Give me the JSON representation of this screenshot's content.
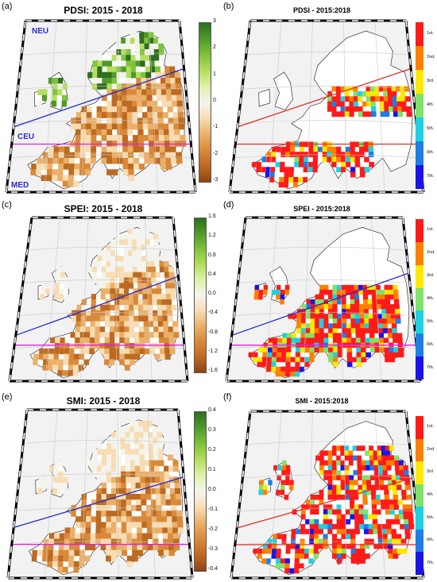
{
  "figure": {
    "panels": [
      {
        "id": "a",
        "letter": "(a)",
        "title": "PDSI: 2015 - 2018",
        "type": "index",
        "cbar": {
          "ticks": [
            "3",
            "2",
            "1",
            "0",
            "-1",
            "-2",
            "-3"
          ],
          "colors": [
            "#2e6e1f",
            "#4f9a29",
            "#7fc23b",
            "#b4de5e",
            "#dff2aa",
            "#f4f4ee",
            "#f8dcb3",
            "#eab06b",
            "#d88a3a",
            "#bd6a22",
            "#8e4312"
          ]
        },
        "regions": [
          "NEU",
          "CEU",
          "MED"
        ]
      },
      {
        "id": "b",
        "letter": "(b)",
        "title": "PDSI - 2015:2018",
        "type": "rank",
        "cbar": {
          "ticks": [
            "1st.",
            "2nd.",
            "3rd.",
            "4th.",
            "5th.",
            "6th.",
            "7th."
          ]
        }
      },
      {
        "id": "c",
        "letter": "(c)",
        "title": "SPEI: 2015 - 2018",
        "type": "index",
        "cbar": {
          "ticks": [
            "1.6",
            "1.2",
            "0.8",
            "0.4",
            "0.0",
            "-0.4",
            "-0.8",
            "-1.2",
            "-1.6"
          ],
          "colors": [
            "#2e6e1f",
            "#4f9a29",
            "#7fc23b",
            "#b4de5e",
            "#dff2aa",
            "#f4f4ee",
            "#f8dcb3",
            "#eab06b",
            "#d88a3a",
            "#bd6a22",
            "#8e4312"
          ]
        }
      },
      {
        "id": "d",
        "letter": "(d)",
        "title": "SPEI - 2015:2018",
        "type": "rank",
        "cbar": {
          "ticks": [
            "1st.",
            "2nd.",
            "3rd.",
            "4th.",
            "5th.",
            "6th.",
            "7th."
          ]
        }
      },
      {
        "id": "e",
        "letter": "(e)",
        "title": "SMI: 2015 - 2018",
        "type": "index",
        "cbar": {
          "ticks": [
            "0.4",
            "0.3",
            "0.2",
            "0.1",
            "0.0",
            "-0.1",
            "-0.2",
            "-0.3",
            "-0.4"
          ],
          "colors": [
            "#2e6e1f",
            "#4f9a29",
            "#7fc23b",
            "#b4de5e",
            "#dff2aa",
            "#f4f4ee",
            "#f8dcb3",
            "#eab06b",
            "#d88a3a",
            "#bd6a22",
            "#8e4312"
          ]
        }
      },
      {
        "id": "f",
        "letter": "(f)",
        "title": "SMI - 2015:2018",
        "type": "rank",
        "cbar": {
          "ticks": [
            "1st.",
            "2nd",
            "3rd",
            "4th",
            "5th.",
            "6th.",
            "7th."
          ]
        }
      }
    ],
    "rank_colors": [
      "#ff1a1a",
      "#ff8000",
      "#ffe800",
      "#7fe36a",
      "#1fd0e0",
      "#1f7de8",
      "#1a14e8"
    ],
    "line_colors": {
      "neu_ceu": "#1f2bd0",
      "ceu_med": "#e01fe0",
      "rank_line": "#e0302a"
    }
  }
}
